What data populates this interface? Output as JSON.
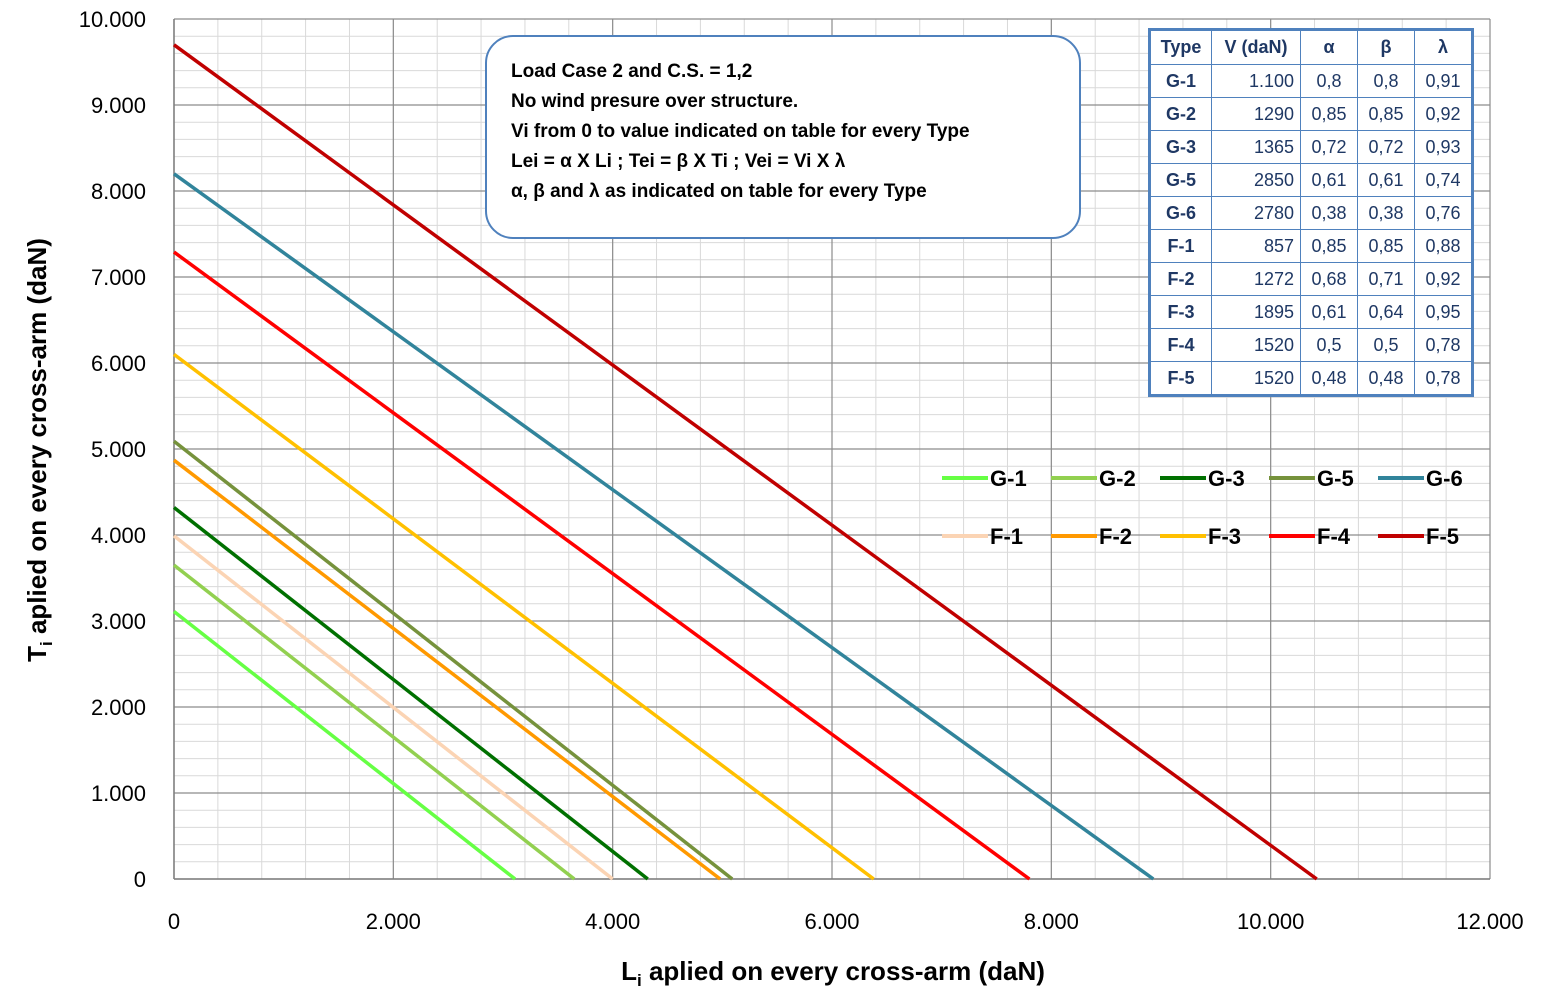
{
  "chart_data": {
    "type": "line",
    "xlabel": "L",
    "xlabel_sub": "i",
    "xlabel_rest": " aplied on every cross-arm (daN)",
    "ylabel": "T",
    "ylabel_sub": "i",
    "ylabel_rest": "  aplied on every cross-arm (daN)",
    "xlim": [
      0,
      12000
    ],
    "ylim": [
      0,
      10000
    ],
    "x_ticks": [
      "0",
      "2.000",
      "4.000",
      "6.000",
      "8.000",
      "10.000",
      "12.000"
    ],
    "y_ticks": [
      "0",
      "1.000",
      "2.000",
      "3.000",
      "4.000",
      "5.000",
      "6.000",
      "7.000",
      "8.000",
      "9.000",
      "10.000"
    ],
    "grid": true,
    "legend_position": "right",
    "series": [
      {
        "name": "G-1",
        "color": "#66ff44",
        "x": [
          0,
          3110
        ],
        "y": [
          3110,
          0
        ]
      },
      {
        "name": "G-2",
        "color": "#92d050",
        "x": [
          0,
          3650
        ],
        "y": [
          3650,
          0
        ]
      },
      {
        "name": "G-3",
        "color": "#007000",
        "x": [
          0,
          4320
        ],
        "y": [
          4320,
          0
        ]
      },
      {
        "name": "G-5",
        "color": "#76923c",
        "x": [
          0,
          5090
        ],
        "y": [
          5090,
          0
        ]
      },
      {
        "name": "G-6",
        "color": "#31849b",
        "x": [
          0,
          8930
        ],
        "y": [
          8200,
          0
        ]
      },
      {
        "name": "F-1",
        "color": "#fbd4b4",
        "x": [
          0,
          4000
        ],
        "y": [
          3990,
          0
        ]
      },
      {
        "name": "F-2",
        "color": "#ff9900",
        "x": [
          0,
          4980
        ],
        "y": [
          4870,
          0
        ]
      },
      {
        "name": "F-3",
        "color": "#ffc000",
        "x": [
          0,
          6380
        ],
        "y": [
          6100,
          0
        ]
      },
      {
        "name": "F-4",
        "color": "#ff0000",
        "x": [
          0,
          7800
        ],
        "y": [
          7290,
          0
        ]
      },
      {
        "name": "F-5",
        "color": "#c00000",
        "x": [
          0,
          10420
        ],
        "y": [
          9700,
          0
        ]
      }
    ],
    "annotations": [
      "Load Case 2 and C.S. = 1,2",
      "No wind presure over structure.",
      "Vi from 0 to value indicated on table for every Type",
      "Lei = α X Li ; Tei = β X Ti ; Vei = Vi X λ",
      "α, β and  λ as indicated on table for every Type"
    ],
    "table": {
      "headers": [
        "Type",
        "V (daN)",
        "α",
        "β",
        "λ"
      ],
      "rows": [
        [
          "G-1",
          "1.100",
          "0,8",
          "0,8",
          "0,91"
        ],
        [
          "G-2",
          "1290",
          "0,85",
          "0,85",
          "0,92"
        ],
        [
          "G-3",
          "1365",
          "0,72",
          "0,72",
          "0,93"
        ],
        [
          "G-5",
          "2850",
          "0,61",
          "0,61",
          "0,74"
        ],
        [
          "G-6",
          "2780",
          "0,38",
          "0,38",
          "0,76"
        ],
        [
          "F-1",
          "857",
          "0,85",
          "0,85",
          "0,88"
        ],
        [
          "F-2",
          "1272",
          "0,68",
          "0,71",
          "0,92"
        ],
        [
          "F-3",
          "1895",
          "0,61",
          "0,64",
          "0,95"
        ],
        [
          "F-4",
          "1520",
          "0,5",
          "0,5",
          "0,78"
        ],
        [
          "F-5",
          "1520",
          "0,48",
          "0,48",
          "0,78"
        ]
      ]
    }
  }
}
